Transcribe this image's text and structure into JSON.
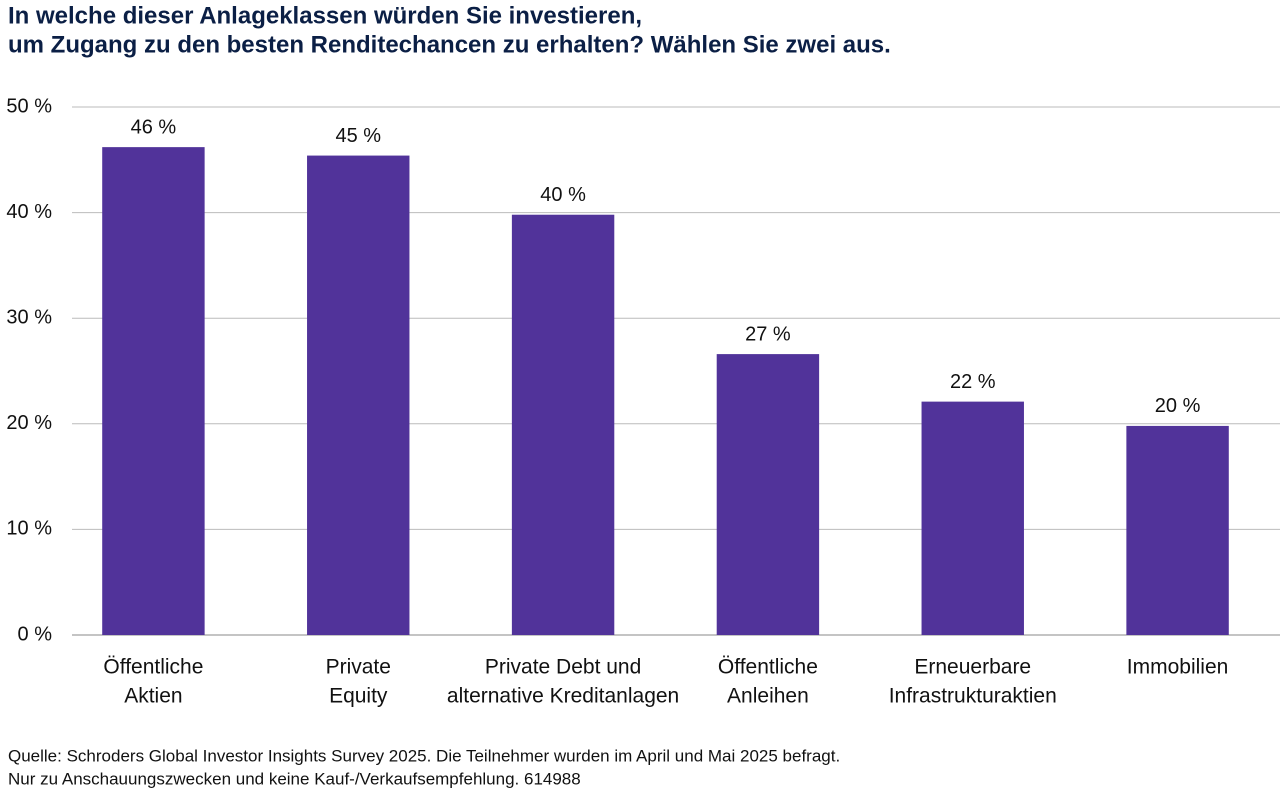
{
  "chart_data": {
    "type": "bar",
    "title": [
      "In welche dieser Anlageklassen würden Sie investieren,",
      "um Zugang zu den besten Renditechancen zu erhalten? Wählen Sie zwei aus."
    ],
    "categories": [
      [
        "Öffentliche",
        "Aktien"
      ],
      [
        "Private",
        "Equity"
      ],
      [
        "Private Debt und",
        "alternative Kreditanlagen"
      ],
      [
        "Öffentliche",
        "Anleihen"
      ],
      [
        "Erneuerbare",
        "Infrastrukturaktien"
      ],
      [
        "Immobilien"
      ]
    ],
    "values": [
      46.2,
      45.4,
      39.8,
      26.6,
      22.1,
      19.8
    ],
    "value_labels": [
      "46 %",
      "45 %",
      "40 %",
      "27 %",
      "22 %",
      "20 %"
    ],
    "color": "#51339a",
    "ylim": [
      0,
      50
    ],
    "yticks": [
      {
        "value": 0,
        "label": "0 %"
      },
      {
        "value": 10,
        "label": "10 %"
      },
      {
        "value": 20,
        "label": "20 %"
      },
      {
        "value": 30,
        "label": "30 %"
      },
      {
        "value": 40,
        "label": "40 %"
      },
      {
        "value": 50,
        "label": "50 %"
      }
    ],
    "grid": true,
    "notes": [
      "Quelle: Schroders Global Investor Insights Survey 2025. Die Teilnehmer wurden im April und Mai 2025 befragt.",
      "Nur zu Anschauungszwecken und keine Kauf-/Verkaufsempfehlung. 614988"
    ]
  }
}
